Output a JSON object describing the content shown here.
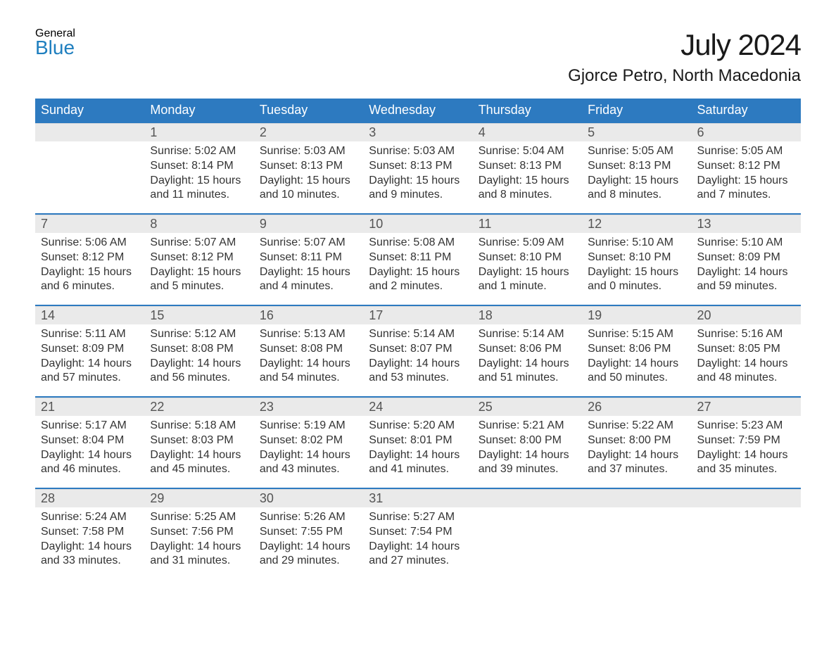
{
  "logo": {
    "general": "General",
    "blue": "Blue",
    "accent_color": "#1f7fbf",
    "text_color": "#3a3a3a"
  },
  "title": "July 2024",
  "location": "Gjorce Petro, North Macedonia",
  "header_bg": "#2d7ac0",
  "header_fg": "#ffffff",
  "row_stripe": "#eaeaea",
  "border_color": "#2d7ac0",
  "body_bg": "#ffffff",
  "text_color": "#333333",
  "font_family": "Arial, Helvetica, sans-serif",
  "title_fontsize": 42,
  "location_fontsize": 24,
  "header_fontsize": 18,
  "daynum_fontsize": 18,
  "body_fontsize": 16,
  "day_labels": [
    "Sunday",
    "Monday",
    "Tuesday",
    "Wednesday",
    "Thursday",
    "Friday",
    "Saturday"
  ],
  "weeks": [
    [
      null,
      {
        "n": "1",
        "sr": "Sunrise: 5:02 AM",
        "ss": "Sunset: 8:14 PM",
        "dl": "Daylight: 15 hours and 11 minutes."
      },
      {
        "n": "2",
        "sr": "Sunrise: 5:03 AM",
        "ss": "Sunset: 8:13 PM",
        "dl": "Daylight: 15 hours and 10 minutes."
      },
      {
        "n": "3",
        "sr": "Sunrise: 5:03 AM",
        "ss": "Sunset: 8:13 PM",
        "dl": "Daylight: 15 hours and 9 minutes."
      },
      {
        "n": "4",
        "sr": "Sunrise: 5:04 AM",
        "ss": "Sunset: 8:13 PM",
        "dl": "Daylight: 15 hours and 8 minutes."
      },
      {
        "n": "5",
        "sr": "Sunrise: 5:05 AM",
        "ss": "Sunset: 8:13 PM",
        "dl": "Daylight: 15 hours and 8 minutes."
      },
      {
        "n": "6",
        "sr": "Sunrise: 5:05 AM",
        "ss": "Sunset: 8:12 PM",
        "dl": "Daylight: 15 hours and 7 minutes."
      }
    ],
    [
      {
        "n": "7",
        "sr": "Sunrise: 5:06 AM",
        "ss": "Sunset: 8:12 PM",
        "dl": "Daylight: 15 hours and 6 minutes."
      },
      {
        "n": "8",
        "sr": "Sunrise: 5:07 AM",
        "ss": "Sunset: 8:12 PM",
        "dl": "Daylight: 15 hours and 5 minutes."
      },
      {
        "n": "9",
        "sr": "Sunrise: 5:07 AM",
        "ss": "Sunset: 8:11 PM",
        "dl": "Daylight: 15 hours and 4 minutes."
      },
      {
        "n": "10",
        "sr": "Sunrise: 5:08 AM",
        "ss": "Sunset: 8:11 PM",
        "dl": "Daylight: 15 hours and 2 minutes."
      },
      {
        "n": "11",
        "sr": "Sunrise: 5:09 AM",
        "ss": "Sunset: 8:10 PM",
        "dl": "Daylight: 15 hours and 1 minute."
      },
      {
        "n": "12",
        "sr": "Sunrise: 5:10 AM",
        "ss": "Sunset: 8:10 PM",
        "dl": "Daylight: 15 hours and 0 minutes."
      },
      {
        "n": "13",
        "sr": "Sunrise: 5:10 AM",
        "ss": "Sunset: 8:09 PM",
        "dl": "Daylight: 14 hours and 59 minutes."
      }
    ],
    [
      {
        "n": "14",
        "sr": "Sunrise: 5:11 AM",
        "ss": "Sunset: 8:09 PM",
        "dl": "Daylight: 14 hours and 57 minutes."
      },
      {
        "n": "15",
        "sr": "Sunrise: 5:12 AM",
        "ss": "Sunset: 8:08 PM",
        "dl": "Daylight: 14 hours and 56 minutes."
      },
      {
        "n": "16",
        "sr": "Sunrise: 5:13 AM",
        "ss": "Sunset: 8:08 PM",
        "dl": "Daylight: 14 hours and 54 minutes."
      },
      {
        "n": "17",
        "sr": "Sunrise: 5:14 AM",
        "ss": "Sunset: 8:07 PM",
        "dl": "Daylight: 14 hours and 53 minutes."
      },
      {
        "n": "18",
        "sr": "Sunrise: 5:14 AM",
        "ss": "Sunset: 8:06 PM",
        "dl": "Daylight: 14 hours and 51 minutes."
      },
      {
        "n": "19",
        "sr": "Sunrise: 5:15 AM",
        "ss": "Sunset: 8:06 PM",
        "dl": "Daylight: 14 hours and 50 minutes."
      },
      {
        "n": "20",
        "sr": "Sunrise: 5:16 AM",
        "ss": "Sunset: 8:05 PM",
        "dl": "Daylight: 14 hours and 48 minutes."
      }
    ],
    [
      {
        "n": "21",
        "sr": "Sunrise: 5:17 AM",
        "ss": "Sunset: 8:04 PM",
        "dl": "Daylight: 14 hours and 46 minutes."
      },
      {
        "n": "22",
        "sr": "Sunrise: 5:18 AM",
        "ss": "Sunset: 8:03 PM",
        "dl": "Daylight: 14 hours and 45 minutes."
      },
      {
        "n": "23",
        "sr": "Sunrise: 5:19 AM",
        "ss": "Sunset: 8:02 PM",
        "dl": "Daylight: 14 hours and 43 minutes."
      },
      {
        "n": "24",
        "sr": "Sunrise: 5:20 AM",
        "ss": "Sunset: 8:01 PM",
        "dl": "Daylight: 14 hours and 41 minutes."
      },
      {
        "n": "25",
        "sr": "Sunrise: 5:21 AM",
        "ss": "Sunset: 8:00 PM",
        "dl": "Daylight: 14 hours and 39 minutes."
      },
      {
        "n": "26",
        "sr": "Sunrise: 5:22 AM",
        "ss": "Sunset: 8:00 PM",
        "dl": "Daylight: 14 hours and 37 minutes."
      },
      {
        "n": "27",
        "sr": "Sunrise: 5:23 AM",
        "ss": "Sunset: 7:59 PM",
        "dl": "Daylight: 14 hours and 35 minutes."
      }
    ],
    [
      {
        "n": "28",
        "sr": "Sunrise: 5:24 AM",
        "ss": "Sunset: 7:58 PM",
        "dl": "Daylight: 14 hours and 33 minutes."
      },
      {
        "n": "29",
        "sr": "Sunrise: 5:25 AM",
        "ss": "Sunset: 7:56 PM",
        "dl": "Daylight: 14 hours and 31 minutes."
      },
      {
        "n": "30",
        "sr": "Sunrise: 5:26 AM",
        "ss": "Sunset: 7:55 PM",
        "dl": "Daylight: 14 hours and 29 minutes."
      },
      {
        "n": "31",
        "sr": "Sunrise: 5:27 AM",
        "ss": "Sunset: 7:54 PM",
        "dl": "Daylight: 14 hours and 27 minutes."
      },
      null,
      null,
      null
    ]
  ]
}
